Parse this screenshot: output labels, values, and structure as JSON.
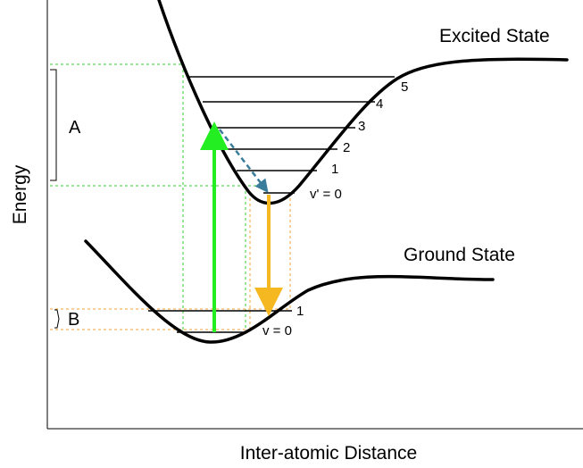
{
  "axes": {
    "y_label": "Energy",
    "x_label": "Inter-atomic Distance"
  },
  "states": {
    "excited_label": "Excited State",
    "ground_label": "Ground State"
  },
  "excited_levels": [
    "v' = 0",
    "1",
    "2",
    "3",
    "4",
    "5"
  ],
  "ground_levels": [
    "v = 0",
    "1"
  ],
  "brackets": {
    "a_label": "A",
    "b_label": "B"
  },
  "colors": {
    "absorption_arrow": "#22ee22",
    "emission_arrow": "#f5b820",
    "relaxation_arrow": "#3a7d9a",
    "excited_guides": "#33cc33",
    "ground_guides": "#f0a030",
    "curves": "#000000"
  }
}
